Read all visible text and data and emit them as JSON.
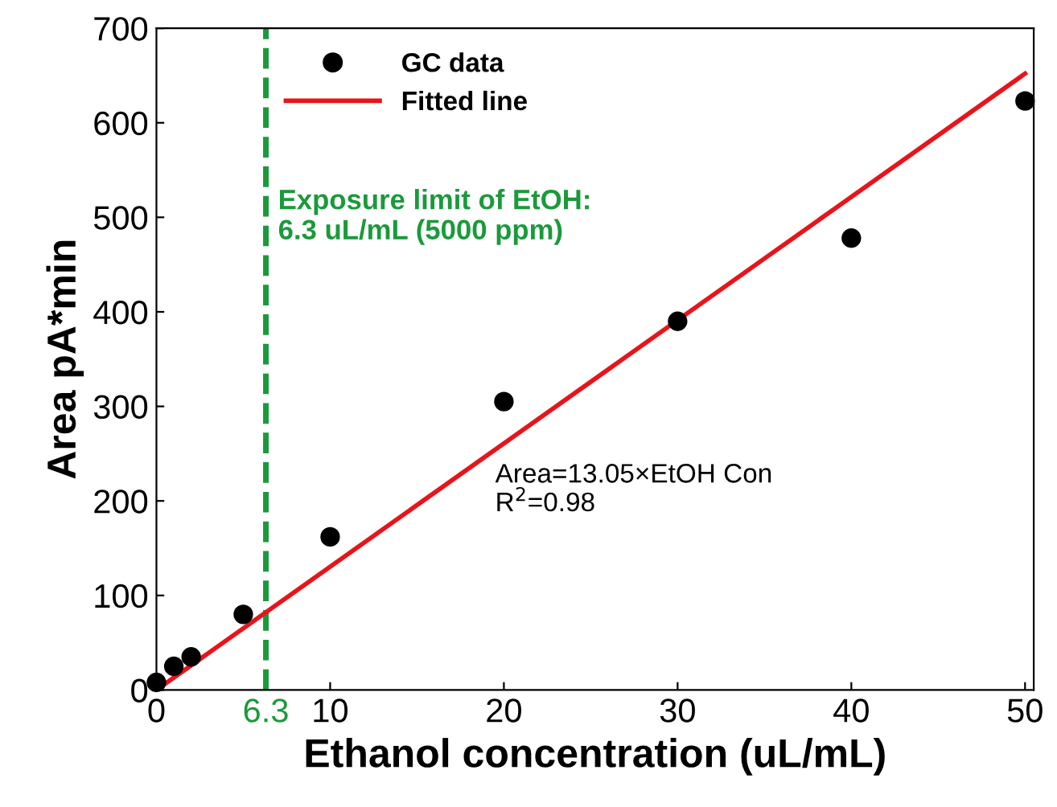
{
  "chart_data": {
    "type": "scatter",
    "xlabel": "Ethanol concentration (uL/mL)",
    "ylabel": "Area pA*min",
    "series": [
      {
        "name": "GC data",
        "marker": "circle",
        "color": "#000000",
        "x": [
          0,
          1,
          2,
          5,
          10,
          20,
          30,
          40,
          50
        ],
        "values": [
          8,
          25,
          35,
          80,
          162,
          305,
          390,
          478,
          623
        ]
      },
      {
        "name": "Fitted line",
        "type": "line",
        "marker": "none",
        "color": "#e8141b",
        "x": [
          0,
          50
        ],
        "values": [
          0,
          652
        ]
      }
    ],
    "xlim": [
      0,
      50.5
    ],
    "ylim": [
      0,
      700
    ],
    "xticks": [
      0,
      {
        "value": 6.3,
        "label": "6.3"
      },
      10,
      20,
      30,
      40,
      50
    ],
    "yticks": [
      0,
      100,
      200,
      300,
      400,
      500,
      600,
      700
    ],
    "ref_lines": [
      {
        "axis": "x",
        "value": 6.3,
        "label": "Exposure limit of EtOH:\n6.3 uL/mL (5000 ppm)",
        "color": "#1a9a3a",
        "line_style": "dashed"
      }
    ],
    "annotations": [
      "Area=13.05×EtOH Con\nR$^{2}$=0.98"
    ],
    "legend": "top left",
    "grid": false
  }
}
